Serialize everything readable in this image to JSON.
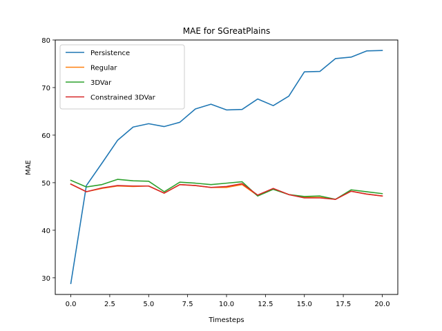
{
  "chart_data": {
    "type": "line",
    "title": "MAE for SGreatPlains",
    "xlabel": "Timesteps",
    "ylabel": "MAE",
    "xlim": [
      -1.0,
      21.0
    ],
    "ylim": [
      26.5,
      80.0
    ],
    "xticks": [
      0.0,
      2.5,
      5.0,
      7.5,
      10.0,
      12.5,
      15.0,
      17.5,
      20.0
    ],
    "xtick_labels": [
      "0.0",
      "2.5",
      "5.0",
      "7.5",
      "10.0",
      "12.5",
      "15.0",
      "17.5",
      "20.0"
    ],
    "yticks": [
      30,
      40,
      50,
      60,
      70,
      80
    ],
    "ytick_labels": [
      "30",
      "40",
      "50",
      "60",
      "70",
      "80"
    ],
    "grid": false,
    "legend_position": "top-left",
    "x": [
      0,
      1,
      2,
      3,
      4,
      5,
      6,
      7,
      8,
      9,
      10,
      11,
      12,
      13,
      14,
      15,
      16,
      17,
      18,
      19,
      20
    ],
    "series": [
      {
        "name": "Persistence",
        "color": "#1f77b4",
        "values": [
          28.8,
          49.4,
          54.1,
          58.9,
          61.7,
          62.4,
          61.8,
          62.7,
          65.5,
          66.5,
          65.3,
          65.4,
          67.6,
          66.2,
          68.2,
          73.3,
          73.4,
          76.1,
          76.4,
          77.7,
          77.8
        ]
      },
      {
        "name": "Regular",
        "color": "#ff7f0e",
        "values": [
          49.7,
          48.1,
          48.8,
          49.3,
          49.2,
          49.3,
          47.8,
          49.6,
          49.4,
          49.0,
          49.0,
          49.6,
          47.3,
          48.7,
          47.5,
          46.9,
          46.9,
          46.5,
          48.2,
          47.6,
          47.2
        ]
      },
      {
        "name": "3DVar",
        "color": "#2ca02c",
        "values": [
          50.5,
          49.1,
          49.6,
          50.7,
          50.4,
          50.3,
          48.1,
          50.1,
          49.9,
          49.6,
          49.9,
          50.2,
          47.2,
          48.6,
          47.5,
          47.1,
          47.2,
          46.5,
          48.5,
          48.1,
          47.7
        ]
      },
      {
        "name": "Constrained 3DVar",
        "color": "#d62728",
        "values": [
          49.7,
          48.1,
          48.9,
          49.4,
          49.3,
          49.3,
          47.8,
          49.6,
          49.4,
          49.0,
          49.2,
          49.8,
          47.4,
          48.8,
          47.5,
          46.8,
          46.8,
          46.5,
          48.2,
          47.6,
          47.2
        ]
      }
    ]
  }
}
